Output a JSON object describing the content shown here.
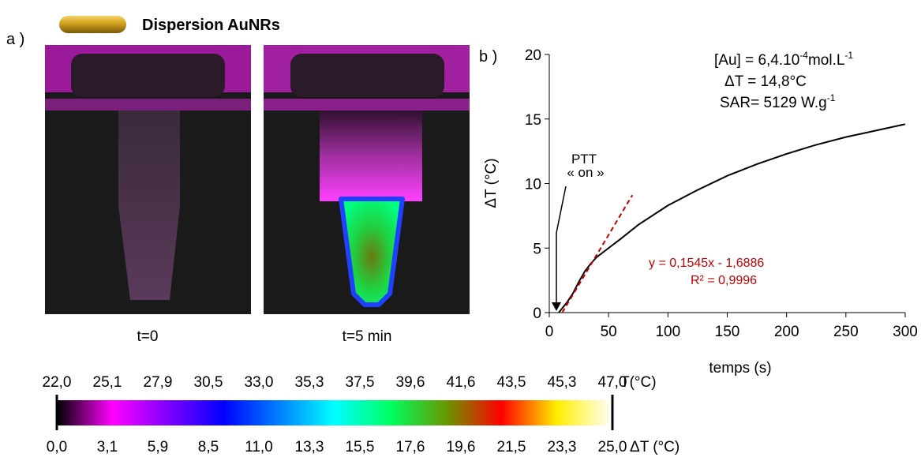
{
  "header": {
    "title": "Dispersion AuNRs"
  },
  "panel_a": {
    "label": "a )",
    "captions": [
      "t=0",
      "t=5 min"
    ]
  },
  "chart_data": {
    "type": "line",
    "panel_label": "b )",
    "x_label": "temps (s)",
    "y_label": "ΔT (°C)",
    "x": [
      8,
      15,
      20,
      25,
      30,
      35,
      40,
      50,
      60,
      75,
      100,
      125,
      150,
      175,
      200,
      225,
      250,
      275,
      300
    ],
    "series": [
      {
        "color": "#000000",
        "values": [
          0,
          0.8,
          1.5,
          2.4,
          3.2,
          3.8,
          4.3,
          5.0,
          5.7,
          6.8,
          8.3,
          9.5,
          10.6,
          11.5,
          12.3,
          13.0,
          13.6,
          14.1,
          14.6
        ]
      }
    ],
    "fit": {
      "x": [
        10.9,
        70
      ],
      "values": [
        0,
        9.1
      ],
      "color": "#c00000",
      "equation": "y = 0,1545x - 1,6886",
      "r2": "R² = 0,9996"
    },
    "xlim": [
      0,
      300
    ],
    "xticks": [
      0,
      50,
      100,
      150,
      200,
      250,
      300
    ],
    "ylim": [
      0,
      20
    ],
    "yticks": [
      0,
      5,
      10,
      15,
      20
    ],
    "annotations": {
      "conc": [
        "[Au] = 6,4.10",
        "-4",
        "mol.L",
        "-1"
      ],
      "delta": "ΔT = 14,8°C",
      "sar": [
        "SAR= 5129 W.g",
        "-1"
      ],
      "ptt": [
        "PTT",
        "« on »"
      ]
    }
  },
  "colorbar": {
    "top_labels": [
      "22,0",
      "25,1",
      "27,9",
      "30,5",
      "33,0",
      "35,3",
      "37,5",
      "39,6",
      "41,6",
      "43,5",
      "45,3",
      "47,0"
    ],
    "top_unit": "T(°C)",
    "bottom_labels": [
      "0,0",
      "3,1",
      "5,9",
      "8,5",
      "11,0",
      "13,3",
      "15,5",
      "17,6",
      "19,6",
      "21,5",
      "23,3",
      "25,0"
    ],
    "bottom_unit": "ΔT (°C)"
  }
}
